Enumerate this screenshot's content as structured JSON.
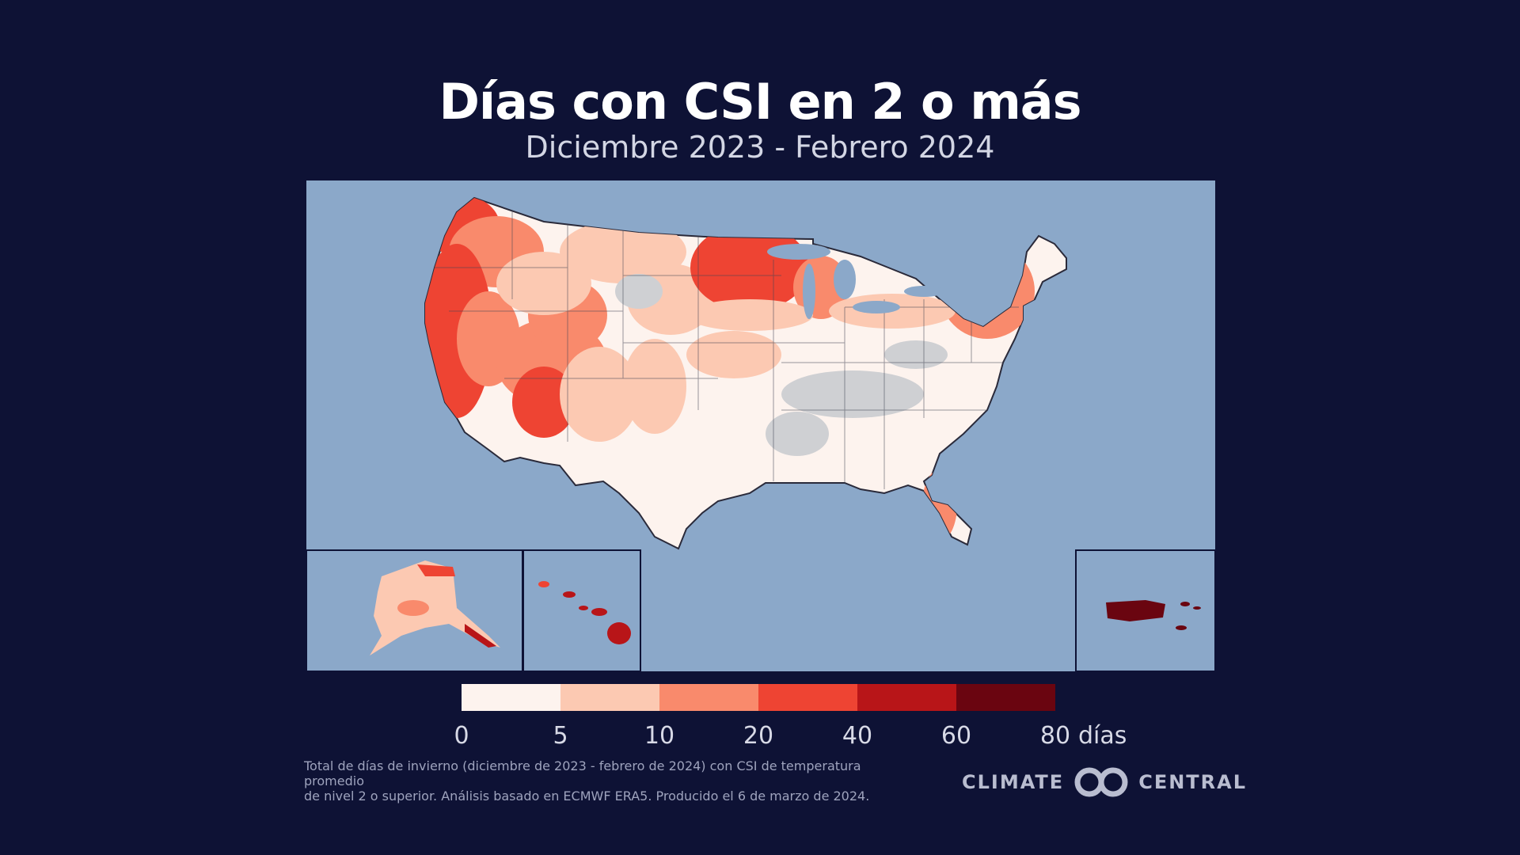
{
  "title": "Días con CSI en 2 o más",
  "subtitle": "Diciembre 2023 - Febrero 2024",
  "legend": {
    "bins": [
      {
        "from": 0,
        "to": 5,
        "color": "#fdf3ee"
      },
      {
        "from": 5,
        "to": 10,
        "color": "#fcc9b2"
      },
      {
        "from": 10,
        "to": 20,
        "color": "#f98a6c"
      },
      {
        "from": 20,
        "to": 40,
        "color": "#ee4433"
      },
      {
        "from": 40,
        "to": 60,
        "color": "#b81518"
      },
      {
        "from": 60,
        "to": 80,
        "color": "#6a0510"
      }
    ],
    "ticks": [
      "0",
      "5",
      "10",
      "20",
      "40",
      "60",
      "80"
    ],
    "unit": "días"
  },
  "colors": {
    "background": "#0e1235",
    "ocean": "#8ba8c9",
    "no_data": "#cfd0d3"
  },
  "footnote": {
    "line1": "Total de días de invierno (diciembre de 2023 - febrero de 2024) con CSI de temperatura promedio",
    "line2": "de nivel 2 o superior. Análisis basado en ECMWF ERA5. Producido el 6 de marzo de 2024."
  },
  "logo": {
    "left": "CLIMATE",
    "right": "CENTRAL"
  }
}
